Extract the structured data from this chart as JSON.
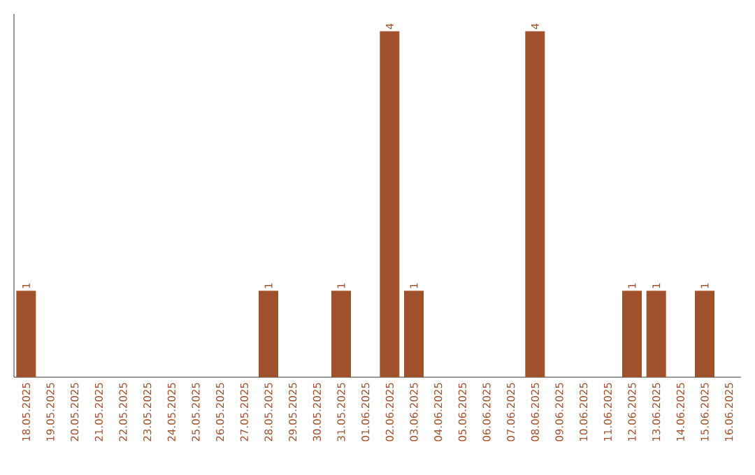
{
  "chart_data": {
    "type": "bar",
    "categories": [
      "18.05.2025",
      "19.05.2025",
      "20.05.2025",
      "21.05.2025",
      "22.05.2025",
      "23.05.2025",
      "24.05.2025",
      "25.05.2025",
      "26.05.2025",
      "27.05.2025",
      "28.05.2025",
      "29.05.2025",
      "30.05.2025",
      "31.05.2025",
      "01.06.2025",
      "02.06.2025",
      "03.06.2025",
      "04.06.2025",
      "05.06.2025",
      "06.06.2025",
      "07.06.2025",
      "08.06.2025",
      "09.06.2025",
      "10.06.2025",
      "11.06.2025",
      "12.06.2025",
      "13.06.2025",
      "14.06.2025",
      "15.06.2025",
      "16.06.2025"
    ],
    "values": [
      1,
      0,
      0,
      0,
      0,
      0,
      0,
      0,
      0,
      0,
      1,
      0,
      0,
      1,
      0,
      4,
      1,
      0,
      0,
      0,
      0,
      4,
      0,
      0,
      0,
      1,
      1,
      0,
      1,
      0
    ],
    "value_labels": [
      "1",
      null,
      null,
      null,
      null,
      null,
      null,
      null,
      null,
      null,
      "1",
      null,
      null,
      "1",
      null,
      "4",
      "1",
      null,
      null,
      null,
      null,
      "4",
      null,
      null,
      null,
      "1",
      "1",
      null,
      "1",
      null
    ],
    "color": "#a0522d",
    "ylim": [
      0,
      4.2
    ],
    "tick_labels": "x"
  }
}
